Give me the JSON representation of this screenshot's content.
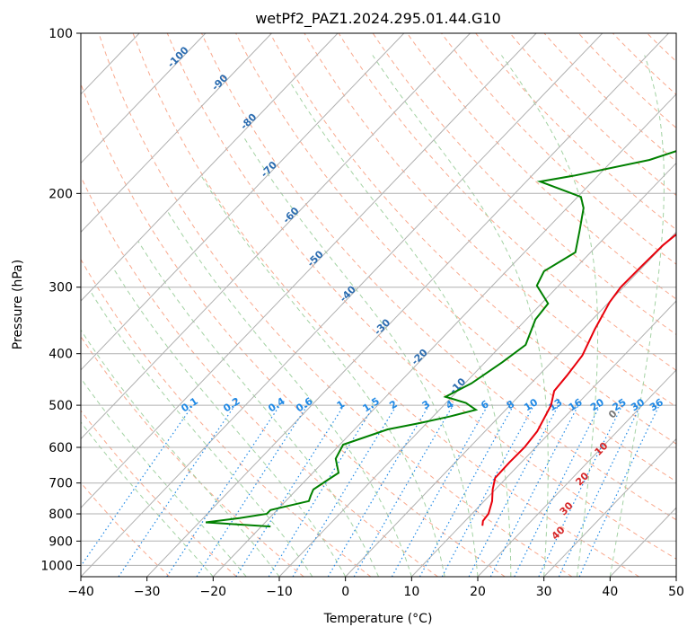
{
  "chart_data": {
    "type": "line",
    "title": "wetPf2_PAZ1.2024.295.01.44.G10",
    "xlabel": "Temperature (°C)",
    "ylabel": "Pressure (hPa)",
    "xlim": [
      -40,
      50
    ],
    "ylim": [
      1050,
      100
    ],
    "y_scale": "log",
    "x_ticks": [
      "−40",
      "−30",
      "−20",
      "−10",
      "0",
      "10",
      "20",
      "30",
      "40",
      "50"
    ],
    "x_tick_values": [
      -40,
      -30,
      -20,
      -10,
      0,
      10,
      20,
      30,
      40,
      50
    ],
    "y_ticks": [
      "100",
      "200",
      "300",
      "400",
      "500",
      "600",
      "700",
      "800",
      "900",
      "1000"
    ],
    "y_tick_values": [
      100,
      200,
      300,
      400,
      500,
      600,
      700,
      800,
      900,
      1000
    ],
    "grid": true,
    "series": [
      {
        "role": "temperature",
        "color": "#e8000b",
        "points": [
          [
            13.3,
            842
          ],
          [
            12.7,
            825
          ],
          [
            12.5,
            800
          ],
          [
            11.2,
            757
          ],
          [
            9.6,
            720
          ],
          [
            8.3,
            685
          ],
          [
            8.2,
            640
          ],
          [
            8.3,
            600
          ],
          [
            7.9,
            560
          ],
          [
            6.2,
            500
          ],
          [
            4.6,
            470
          ],
          [
            4.3,
            440
          ],
          [
            3.7,
            403
          ],
          [
            1.8,
            360
          ],
          [
            0.1,
            320
          ],
          [
            -0.4,
            300
          ],
          [
            -0.3,
            275
          ],
          [
            -0.1,
            250
          ],
          [
            1.1,
            220
          ],
          [
            3.3,
            200
          ],
          [
            6.6,
            182
          ],
          [
            8.3,
            163
          ],
          [
            8.8,
            150
          ],
          [
            9.9,
            137
          ],
          [
            10.4,
            125
          ],
          [
            11.7,
            117
          ],
          [
            15.1,
            110
          ],
          [
            17.2,
            105
          ],
          [
            17.8,
            100
          ]
        ]
      },
      {
        "role": "dewpoint",
        "color": "#008000",
        "points": [
          [
            -18.6,
            845
          ],
          [
            -29.0,
            830
          ],
          [
            -24.5,
            815
          ],
          [
            -21.0,
            800
          ],
          [
            -21.0,
            787
          ],
          [
            -18.5,
            770
          ],
          [
            -16.5,
            757
          ],
          [
            -17.0,
            740
          ],
          [
            -17.5,
            720
          ],
          [
            -16.7,
            690
          ],
          [
            -16.1,
            670
          ],
          [
            -18.6,
            630
          ],
          [
            -19.5,
            593
          ],
          [
            -15.0,
            555
          ],
          [
            -11.0,
            540
          ],
          [
            -7.5,
            525
          ],
          [
            -4.5,
            510
          ],
          [
            -7.0,
            495
          ],
          [
            -11.0,
            482
          ],
          [
            -9.0,
            455
          ],
          [
            -7.4,
            415
          ],
          [
            -6.4,
            385
          ],
          [
            -8.6,
            345
          ],
          [
            -9.0,
            322
          ],
          [
            -13.3,
            298
          ],
          [
            -14.3,
            280
          ],
          [
            -12.3,
            258
          ],
          [
            -14.8,
            235
          ],
          [
            -17.5,
            213
          ],
          [
            -19.5,
            203
          ],
          [
            -27.9,
            190
          ],
          [
            -23.5,
            185
          ],
          [
            -14.5,
            173
          ],
          [
            -10.2,
            163
          ],
          [
            -10.3,
            150
          ],
          [
            -10.0,
            140
          ],
          [
            -6.4,
            128
          ],
          [
            -2.3,
            118
          ],
          [
            -2.1,
            110
          ],
          [
            0.8,
            100
          ]
        ]
      }
    ],
    "dry_adiabat_labels": [
      "-100",
      "-90",
      "-80",
      "-70",
      "-60",
      "-50",
      "-40",
      "-30",
      "-20",
      "-10"
    ],
    "mixing_ratio_labels": [
      "0.1",
      "0.2",
      "0.4",
      "0.6",
      "1",
      "1.5",
      "2",
      "3",
      "4",
      "6",
      "8",
      "10",
      "13",
      "16",
      "20",
      "25",
      "30",
      "36"
    ],
    "moist_adiabat_labels": [
      "0",
      "10",
      "20",
      "30",
      "40"
    ]
  }
}
